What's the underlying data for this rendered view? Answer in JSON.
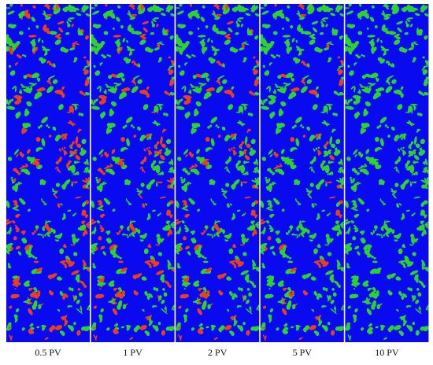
{
  "panels": [
    {
      "label": "0.5 PV"
    },
    {
      "label": "1 PV"
    },
    {
      "label": "2 PV"
    },
    {
      "label": "5 PV"
    },
    {
      "label": "10 PV"
    }
  ]
}
